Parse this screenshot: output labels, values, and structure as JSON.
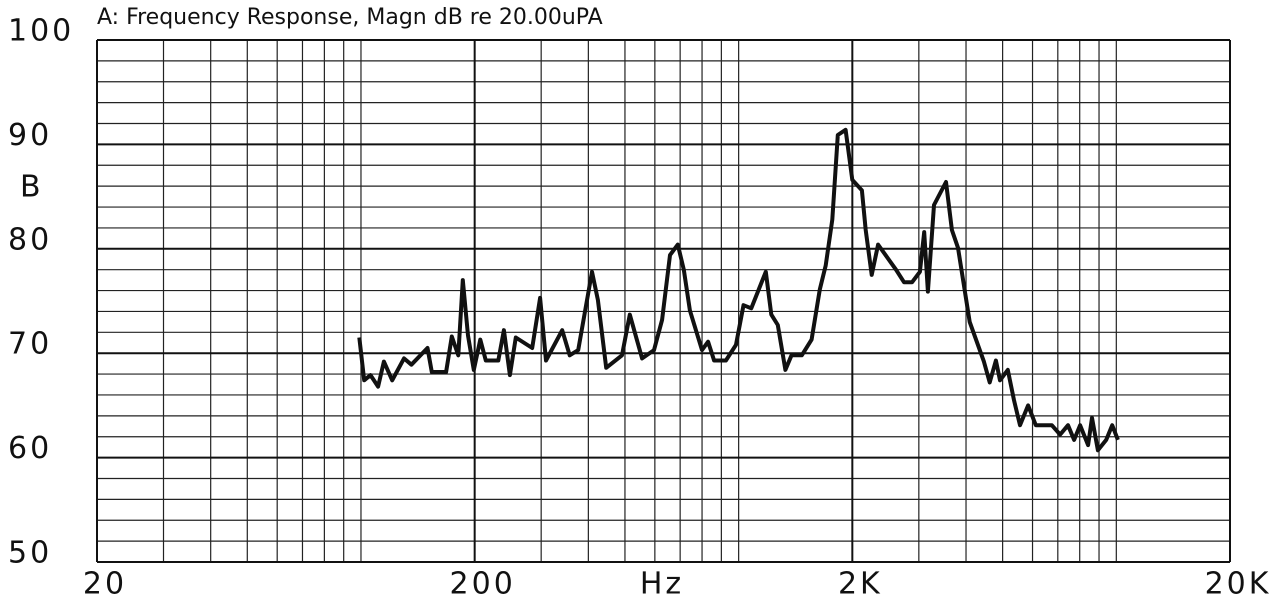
{
  "chart_data": {
    "type": "line",
    "title": "A: Frequency Response, Magn dB re 20.00uPA",
    "y_label": "B",
    "x_label": "Hz",
    "xscale": "log",
    "xlim": [
      20,
      20000
    ],
    "xticks": [
      20,
      200,
      {
        "value": 2000,
        "label": "2K"
      },
      {
        "value": 20000,
        "label": "20K"
      }
    ],
    "xgrid": [
      30,
      40,
      50,
      60,
      70,
      80,
      90,
      100,
      200,
      300,
      400,
      500,
      600,
      700,
      800,
      900,
      1000,
      2000,
      3000,
      4000,
      5000,
      6000,
      7000,
      8000,
      9000,
      10000
    ],
    "ylim": [
      50,
      100
    ],
    "yticks": [
      50,
      60,
      70,
      80,
      90,
      100
    ],
    "ygrid": [
      52,
      54,
      56,
      58,
      60,
      62,
      64,
      66,
      68,
      70,
      72,
      74,
      76,
      78,
      80,
      82,
      84,
      86,
      88,
      90,
      92,
      94,
      96,
      98
    ],
    "grid": true,
    "x": [
      99,
      102,
      106,
      111,
      115,
      121,
      130,
      136,
      150,
      154,
      168,
      174,
      181,
      186,
      192,
      199,
      207,
      214,
      231,
      239,
      248,
      257,
      284,
      298,
      309,
      341,
      357,
      376,
      409,
      424,
      446,
      491,
      515,
      555,
      597,
      627,
      658,
      690,
      716,
      743,
      800,
      830,
      861,
      925,
      984,
      1030,
      1080,
      1180,
      1220,
      1270,
      1330,
      1380,
      1470,
      1560,
      1640,
      1700,
      1770,
      1830,
      1920,
      2000,
      2120,
      2170,
      2250,
      2340,
      2610,
      2740,
      2880,
      3020,
      3100,
      3170,
      3290,
      3540,
      3670,
      3810,
      4090,
      4460,
      4620,
      4800,
      4920,
      5160,
      5360,
      5560,
      5840,
      6120,
      6750,
      7100,
      7450,
      7730,
      8020,
      8420,
      8620,
      8940,
      9400,
      9750,
      10100
    ],
    "series": [
      {
        "name": "Magn dB",
        "color": "#111111",
        "values": [
          71.5,
          67.4,
          67.9,
          66.8,
          69.2,
          67.4,
          69.5,
          68.9,
          70.5,
          68.2,
          68.2,
          71.6,
          69.8,
          77.0,
          71.7,
          68.4,
          71.3,
          69.3,
          69.3,
          72.2,
          67.9,
          71.5,
          70.5,
          75.3,
          69.3,
          72.2,
          69.8,
          70.3,
          77.8,
          75.1,
          68.6,
          69.8,
          73.7,
          69.5,
          70.3,
          73.2,
          79.4,
          80.4,
          78.0,
          74.1,
          70.3,
          71.1,
          69.3,
          69.3,
          70.8,
          74.6,
          74.3,
          77.8,
          73.7,
          72.7,
          68.4,
          69.8,
          69.8,
          71.3,
          76.1,
          78.4,
          82.8,
          90.9,
          91.4,
          86.6,
          85.6,
          81.8,
          77.5,
          80.4,
          78.0,
          76.8,
          76.8,
          77.8,
          81.6,
          75.9,
          84.2,
          86.4,
          81.8,
          80.1,
          73.0,
          69.2,
          67.2,
          69.3,
          67.4,
          68.4,
          65.5,
          63.1,
          65.0,
          63.1,
          63.1,
          62.2,
          63.1,
          61.7,
          63.1,
          61.2,
          63.8,
          60.7,
          61.7,
          63.1,
          61.7
        ]
      }
    ]
  }
}
